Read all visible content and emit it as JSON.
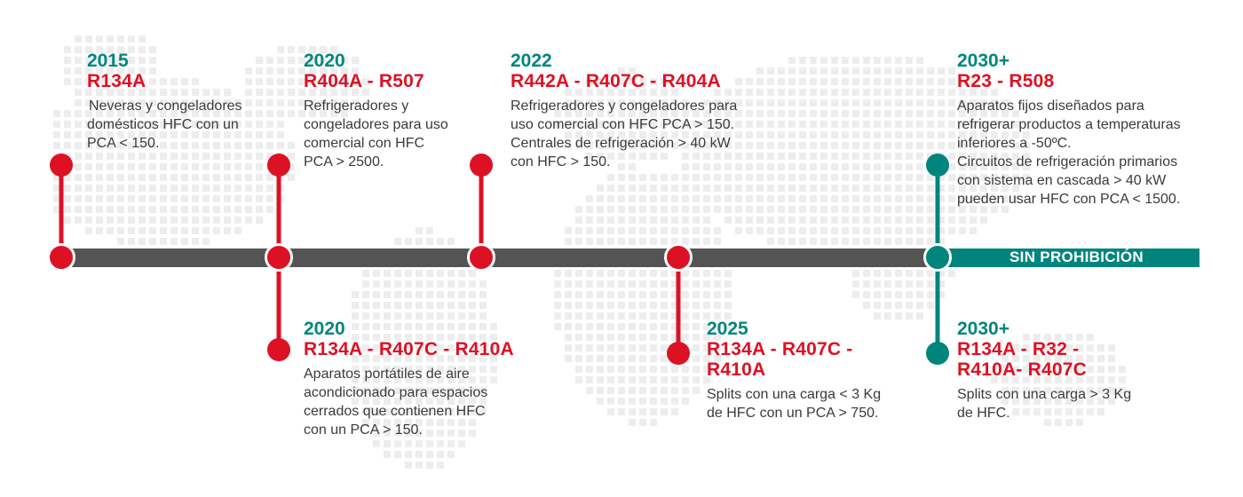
{
  "colors": {
    "red": "#dd1124",
    "teal": "#00857d",
    "bar": "#545454",
    "text": "#3a3a3a",
    "map": "#ededed"
  },
  "milestones": {
    "m2015": {
      "year": "2015",
      "codes": "R134A",
      "desc": [
        "Neveras y congeladores",
        "domésticos HFC  con un",
        "PCA < 150."
      ]
    },
    "m2020a": {
      "year": "2020",
      "codes": "R404A - R507",
      "desc": [
        "Refrigeradores y",
        "congeladores para uso",
        "comercial con HFC",
        "PCA  > 2500."
      ]
    },
    "m2020b": {
      "year": "2020",
      "codes": "R134A - R407C - R410A",
      "desc": [
        "Aparatos portátiles de aire",
        "acondicionado para espacios",
        "cerrados que contienen HFC",
        "con un PCA > 150."
      ]
    },
    "m2022": {
      "year": "2022",
      "codes": "R442A - R407C - R404A",
      "desc": [
        "Refrigeradores y congeladores para",
        "uso comercial con HFC PCA  > 150.",
        "Centrales de refrigeración > 40 kW",
        "con HFC  > 150."
      ]
    },
    "m2025": {
      "year": "2025",
      "codes": [
        "R134A - R407C -",
        "R410A"
      ],
      "desc": [
        "Splits con una carga < 3 Kg",
        "de HFC con un PCA > 750."
      ]
    },
    "m2030a": {
      "year": "2030+",
      "codes": "R23 - R508",
      "desc": [
        "Aparatos fijos diseñados para",
        "refrigerar productos a temperaturas",
        "inferiores a -50ºC.",
        "Circuitos de refrigeración primarios",
        "con sistema en cascada  > 40 kW",
        "pueden usar HFC con  PCA  < 1500."
      ]
    },
    "m2030b": {
      "year": "2030+",
      "codes": [
        "R134A - R32 -",
        "R410A- R407C"
      ],
      "desc": [
        "Splits con una carga > 3 Kg",
        "de HFC."
      ]
    }
  },
  "sin_prohibicion": "SIN PROHIBICIÓN"
}
